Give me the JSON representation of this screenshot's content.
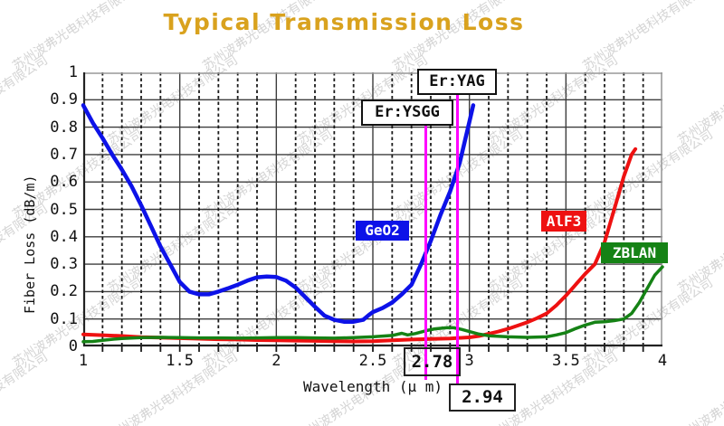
{
  "title": {
    "text": "Typical Transmission Loss",
    "color": "#D9A21E"
  },
  "watermark": {
    "text": "苏州波弗光电科技有限公司",
    "color": "#cdcdcd"
  },
  "chart_data": {
    "type": "line",
    "title": "Typical Transmission Loss",
    "xlabel": "Wavelength (μ m)",
    "ylabel": "Fiber Loss (dB/m)",
    "xlim": [
      1,
      4
    ],
    "ylim": [
      0,
      1
    ],
    "x_ticks": [
      "1",
      "1.5",
      "2",
      "2.5",
      "3",
      "3.5",
      "4"
    ],
    "y_ticks": [
      "0",
      "0.1",
      "0.2",
      "0.3",
      "0.4",
      "0.5",
      "0.6",
      "0.7",
      "0.8",
      "0.9",
      "1"
    ],
    "grid": {
      "horizontal_step": 0.1,
      "vertical_solid_step": 0.5,
      "vertical_dashed_step": 0.1,
      "grid_on": true
    },
    "legend_position": "inline-labels",
    "series": [
      {
        "name": "GeO2",
        "color": "#0d12e8",
        "stroke_width": 4.5,
        "points": [
          [
            1.0,
            0.88
          ],
          [
            1.05,
            0.815
          ],
          [
            1.1,
            0.76
          ],
          [
            1.15,
            0.7
          ],
          [
            1.2,
            0.645
          ],
          [
            1.25,
            0.585
          ],
          [
            1.3,
            0.515
          ],
          [
            1.35,
            0.44
          ],
          [
            1.4,
            0.365
          ],
          [
            1.45,
            0.3
          ],
          [
            1.5,
            0.235
          ],
          [
            1.55,
            0.2
          ],
          [
            1.6,
            0.19
          ],
          [
            1.65,
            0.19
          ],
          [
            1.7,
            0.2
          ],
          [
            1.75,
            0.212
          ],
          [
            1.8,
            0.225
          ],
          [
            1.85,
            0.24
          ],
          [
            1.9,
            0.252
          ],
          [
            1.95,
            0.255
          ],
          [
            2.0,
            0.253
          ],
          [
            2.05,
            0.24
          ],
          [
            2.1,
            0.215
          ],
          [
            2.15,
            0.18
          ],
          [
            2.2,
            0.145
          ],
          [
            2.25,
            0.112
          ],
          [
            2.3,
            0.097
          ],
          [
            2.35,
            0.09
          ],
          [
            2.4,
            0.09
          ],
          [
            2.45,
            0.097
          ],
          [
            2.48,
            0.115
          ],
          [
            2.5,
            0.125
          ],
          [
            2.55,
            0.14
          ],
          [
            2.6,
            0.16
          ],
          [
            2.65,
            0.19
          ],
          [
            2.7,
            0.225
          ],
          [
            2.75,
            0.3
          ],
          [
            2.8,
            0.385
          ],
          [
            2.85,
            0.48
          ],
          [
            2.9,
            0.565
          ],
          [
            2.95,
            0.67
          ],
          [
            3.0,
            0.82
          ],
          [
            3.02,
            0.88
          ]
        ]
      },
      {
        "name": "AlF3",
        "color": "#ee1111",
        "stroke_width": 4,
        "points": [
          [
            1.0,
            0.044
          ],
          [
            1.1,
            0.041
          ],
          [
            1.2,
            0.038
          ],
          [
            1.3,
            0.034
          ],
          [
            1.4,
            0.032
          ],
          [
            1.5,
            0.03
          ],
          [
            1.6,
            0.028
          ],
          [
            1.7,
            0.026
          ],
          [
            1.8,
            0.025
          ],
          [
            1.9,
            0.023
          ],
          [
            2.0,
            0.022
          ],
          [
            2.1,
            0.021
          ],
          [
            2.2,
            0.02
          ],
          [
            2.3,
            0.019
          ],
          [
            2.4,
            0.018
          ],
          [
            2.5,
            0.019
          ],
          [
            2.6,
            0.022
          ],
          [
            2.7,
            0.025
          ],
          [
            2.8,
            0.027
          ],
          [
            2.9,
            0.029
          ],
          [
            3.0,
            0.033
          ],
          [
            3.05,
            0.038
          ],
          [
            3.1,
            0.046
          ],
          [
            3.15,
            0.054
          ],
          [
            3.2,
            0.064
          ],
          [
            3.25,
            0.076
          ],
          [
            3.3,
            0.088
          ],
          [
            3.35,
            0.103
          ],
          [
            3.4,
            0.12
          ],
          [
            3.45,
            0.15
          ],
          [
            3.5,
            0.185
          ],
          [
            3.55,
            0.225
          ],
          [
            3.6,
            0.265
          ],
          [
            3.65,
            0.3
          ],
          [
            3.7,
            0.38
          ],
          [
            3.75,
            0.5
          ],
          [
            3.8,
            0.62
          ],
          [
            3.84,
            0.7
          ],
          [
            3.86,
            0.72
          ]
        ]
      },
      {
        "name": "ZBLAN",
        "color": "#158215",
        "stroke_width": 3.5,
        "points": [
          [
            1.0,
            0.017
          ],
          [
            1.05,
            0.018
          ],
          [
            1.1,
            0.022
          ],
          [
            1.15,
            0.026
          ],
          [
            1.2,
            0.029
          ],
          [
            1.3,
            0.032
          ],
          [
            1.4,
            0.033
          ],
          [
            1.5,
            0.032
          ],
          [
            1.6,
            0.031
          ],
          [
            1.7,
            0.031
          ],
          [
            1.8,
            0.03
          ],
          [
            1.9,
            0.031
          ],
          [
            2.0,
            0.032
          ],
          [
            2.1,
            0.032
          ],
          [
            2.2,
            0.031
          ],
          [
            2.3,
            0.03
          ],
          [
            2.4,
            0.032
          ],
          [
            2.5,
            0.035
          ],
          [
            2.6,
            0.04
          ],
          [
            2.65,
            0.048
          ],
          [
            2.68,
            0.042
          ],
          [
            2.72,
            0.047
          ],
          [
            2.78,
            0.058
          ],
          [
            2.82,
            0.064
          ],
          [
            2.88,
            0.068
          ],
          [
            2.92,
            0.068
          ],
          [
            2.96,
            0.062
          ],
          [
            3.0,
            0.054
          ],
          [
            3.05,
            0.045
          ],
          [
            3.1,
            0.039
          ],
          [
            3.2,
            0.035
          ],
          [
            3.3,
            0.033
          ],
          [
            3.4,
            0.035
          ],
          [
            3.45,
            0.042
          ],
          [
            3.5,
            0.05
          ],
          [
            3.55,
            0.065
          ],
          [
            3.6,
            0.078
          ],
          [
            3.65,
            0.088
          ],
          [
            3.7,
            0.09
          ],
          [
            3.75,
            0.094
          ],
          [
            3.8,
            0.1
          ],
          [
            3.84,
            0.12
          ],
          [
            3.88,
            0.16
          ],
          [
            3.92,
            0.21
          ],
          [
            3.96,
            0.26
          ],
          [
            4.0,
            0.29
          ]
        ]
      }
    ],
    "annotations": {
      "marker_color": "#ff00ff",
      "er_ysgg": {
        "label": "Er:YSGG",
        "x": 2.78,
        "x_label": "2.78"
      },
      "er_yag": {
        "label": "Er:YAG",
        "x": 2.94,
        "x_label": "2.94"
      }
    }
  }
}
